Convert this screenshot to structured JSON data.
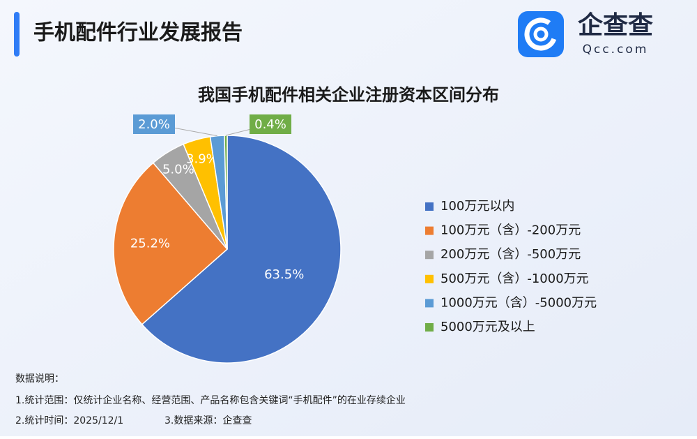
{
  "header": {
    "title": "手机配件行业发展报告",
    "logo_text": "企查查",
    "logo_sub": "Qcc.com"
  },
  "chart_data": {
    "type": "pie",
    "title": "我国手机配件相关企业注册资本区间分布",
    "categories": [
      "100万元以内",
      "100万元（含）-200万元",
      "200万元（含）-500万元",
      "500万元（含）-1000万元",
      "1000万元（含）-5000万元",
      "5000万元及以上"
    ],
    "values": [
      63.5,
      25.2,
      5.0,
      3.9,
      2.0,
      0.4
    ],
    "value_labels": [
      "63.5%",
      "25.2%",
      "5.0%",
      "3.9%",
      "2.0%",
      "0.4%"
    ],
    "colors": [
      "#4472c4",
      "#ed7d31",
      "#a5a5a5",
      "#ffc000",
      "#5b9bd5",
      "#70ad47"
    ],
    "legend": "right"
  },
  "notes": {
    "heading": "数据说明：",
    "items": [
      "1.统计范围：仅统计企业名称、经营范围、产品名称包含关键词“手机配件”的在业存续企业",
      "2.统计时间：2025/12/1",
      "3.数据来源：企查查"
    ]
  }
}
